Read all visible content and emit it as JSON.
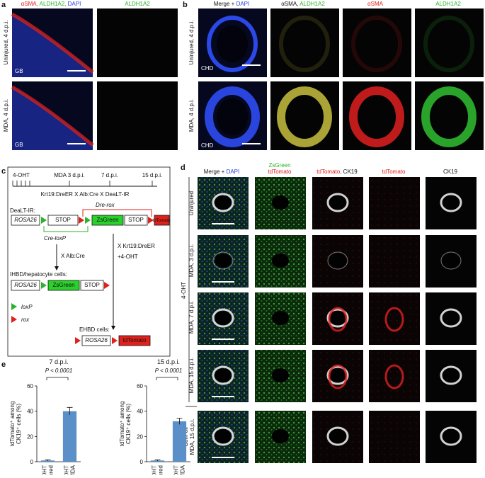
{
  "panel_a": {
    "label": "a",
    "header_1": [
      "αSMA,",
      "ALDH1A2,",
      "DAPI"
    ],
    "header_2": "ALDH1A2",
    "rows": [
      "Uninjured, 4 d.p.i.",
      "MDA, 4 d.p.i."
    ],
    "image_tags": [
      "GB",
      "GB"
    ]
  },
  "panel_b": {
    "label": "b",
    "header_1": [
      "Merge +",
      "DAPI"
    ],
    "header_2": [
      "αSMA,",
      "ALDH1A2"
    ],
    "header_3": "αSMA",
    "header_4": "ALDH1A2",
    "rows": [
      "Uninjured, 4 d.p.i.",
      "MDA, 4 d.p.i."
    ],
    "image_tags": [
      "CHD",
      "CHD"
    ]
  },
  "panel_c": {
    "label": "c",
    "timeline": [
      "4-OHT",
      "MDA 3 d.p.i.",
      "7 d.p.i.",
      "15 d.p.i."
    ],
    "cross": "Krt19:DreER X Alb:Cre X DeaLT-IR",
    "dealt_title": "DeaLT-IR:",
    "dre_rox": "Dre-rox",
    "dealt_row": [
      "ROSA26",
      "STOP",
      "ZsGreen",
      "STOP",
      "tdTomato"
    ],
    "cre_loxp": "Cre-loxP",
    "alb_cre": "X Alb:Cre",
    "krt19": [
      "X Krt19:DreER",
      "+4-OHT"
    ],
    "ihbd_title": "IHBD/hepatocyte cells:",
    "ihbd_row": [
      "ROSA26",
      "ZsGreen",
      "STOP"
    ],
    "ehbd_title": "EHBD cells:",
    "ehbd_row": [
      "ROSA26",
      "tdTomato"
    ],
    "legend": [
      "loxP",
      "rox"
    ]
  },
  "panel_d": {
    "label": "d",
    "header_1": [
      "Merge +",
      "DAPI"
    ],
    "header_2": [
      "ZsGreen",
      "tdTomato"
    ],
    "header_3": [
      "tdTomato,",
      "CK19"
    ],
    "header_4": "tdTomato",
    "header_5": "CK19",
    "rows": [
      "Uninjured",
      "MDA, 3 d.p.i.",
      "MDA, 7 d.p.i.",
      "MDA, 15 d.p.i."
    ],
    "corn_oil_row": [
      "Corn oil",
      "MDA, 15 d.p.i."
    ],
    "group": "4-OHT"
  },
  "panel_e": {
    "label": "e"
  },
  "chart_data": [
    {
      "type": "bar",
      "title": "7 d.p.i.",
      "annotation": "P < 0.0001",
      "ylabel": [
        "tdTomato⁺ among",
        "CK19⁺ cells (%)"
      ],
      "categories": [
        "Uninjured",
        "+MDA"
      ],
      "category_groups": [
        "4-OHT",
        "4-OHT"
      ],
      "values": [
        1,
        40
      ],
      "errors": [
        0.5,
        3
      ],
      "color": "#5b8fc7",
      "ylim": [
        0,
        60
      ],
      "yticks": [
        0,
        20,
        40,
        60
      ]
    },
    {
      "type": "bar",
      "title": "15 d.p.i.",
      "annotation": "P < 0.0001",
      "ylabel": [
        "tdTomato⁺ among",
        "CK19⁺ cells (%)"
      ],
      "categories": [
        "Uninjured",
        "+MDA"
      ],
      "category_groups": [
        "4-OHT",
        "4-OHT"
      ],
      "values": [
        1,
        32
      ],
      "errors": [
        0.5,
        2.5
      ],
      "color": "#5b8fc7",
      "ylim": [
        0,
        60
      ],
      "yticks": [
        0,
        20,
        40,
        60
      ]
    }
  ]
}
